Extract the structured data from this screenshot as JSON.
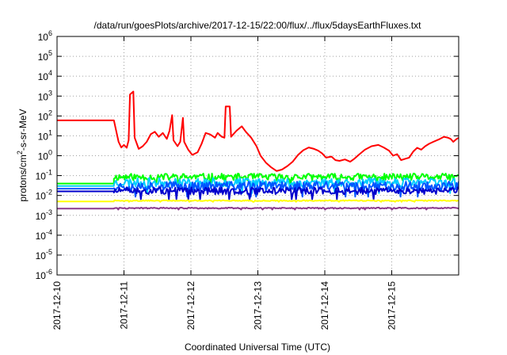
{
  "chart_data": {
    "type": "line",
    "title": "/data/run/goesPlots/archive/2017-12-15/22:00/flux/../flux/5daysEarthFluxes.txt",
    "xlabel": "Coordinated Universal Time (UTC)",
    "ylabel": "protons/cm²-s-sr-MeV",
    "yscale": "log",
    "xlim": [
      "2017-12-10",
      "2017-12-16"
    ],
    "ylim": [
      1e-06,
      1000000.0
    ],
    "grid": true,
    "x_ticks": [
      "2017-12-10",
      "2017-12-11",
      "2017-12-12",
      "2017-12-13",
      "2017-12-14",
      "2017-12-15"
    ],
    "y_ticks": [
      {
        "base": "10",
        "exp": "6"
      },
      {
        "base": "10",
        "exp": "5"
      },
      {
        "base": "10",
        "exp": "4"
      },
      {
        "base": "10",
        "exp": "3"
      },
      {
        "base": "10",
        "exp": "2"
      },
      {
        "base": "10",
        "exp": "1"
      },
      {
        "base": "10",
        "exp": "0"
      },
      {
        "base": "10",
        "exp": "-1"
      },
      {
        "base": "10",
        "exp": "-2"
      },
      {
        "base": "10",
        "exp": "-3"
      },
      {
        "base": "10",
        "exp": "-4"
      },
      {
        "base": "10",
        "exp": "-5"
      },
      {
        "base": "10",
        "exp": "-6"
      }
    ],
    "series": [
      {
        "color": "#ff0000",
        "width": 2,
        "points": [
          [
            0.0,
            60
          ],
          [
            0.85,
            60
          ],
          [
            0.88,
            20
          ],
          [
            0.92,
            5
          ],
          [
            0.96,
            2.6
          ],
          [
            1.0,
            3.5
          ],
          [
            1.04,
            2.5
          ],
          [
            1.07,
            6
          ],
          [
            1.09,
            1200
          ],
          [
            1.14,
            1700
          ],
          [
            1.16,
            8
          ],
          [
            1.22,
            2.2
          ],
          [
            1.28,
            3
          ],
          [
            1.34,
            5
          ],
          [
            1.4,
            12
          ],
          [
            1.46,
            16
          ],
          [
            1.52,
            9
          ],
          [
            1.58,
            14
          ],
          [
            1.64,
            7
          ],
          [
            1.68,
            18
          ],
          [
            1.72,
            110
          ],
          [
            1.74,
            6
          ],
          [
            1.8,
            3
          ],
          [
            1.84,
            5
          ],
          [
            1.88,
            80
          ],
          [
            1.9,
            5
          ],
          [
            1.96,
            2
          ],
          [
            2.02,
            1.1
          ],
          [
            2.1,
            1.5
          ],
          [
            2.16,
            4
          ],
          [
            2.22,
            14
          ],
          [
            2.28,
            12
          ],
          [
            2.32,
            10
          ],
          [
            2.36,
            8
          ],
          [
            2.4,
            14
          ],
          [
            2.46,
            9
          ],
          [
            2.5,
            8
          ],
          [
            2.52,
            300
          ],
          [
            2.58,
            300
          ],
          [
            2.6,
            9
          ],
          [
            2.68,
            18
          ],
          [
            2.76,
            30
          ],
          [
            2.82,
            16
          ],
          [
            2.9,
            8
          ],
          [
            2.98,
            3
          ],
          [
            3.04,
            1
          ],
          [
            3.12,
            0.45
          ],
          [
            3.2,
            0.26
          ],
          [
            3.28,
            0.17
          ],
          [
            3.36,
            0.2
          ],
          [
            3.44,
            0.3
          ],
          [
            3.52,
            0.5
          ],
          [
            3.6,
            1.1
          ],
          [
            3.68,
            1.9
          ],
          [
            3.76,
            2.6
          ],
          [
            3.84,
            2.2
          ],
          [
            3.9,
            1.8
          ],
          [
            3.96,
            1.3
          ],
          [
            4.02,
            0.8
          ],
          [
            4.1,
            0.9
          ],
          [
            4.16,
            0.6
          ],
          [
            4.22,
            0.55
          ],
          [
            4.3,
            0.65
          ],
          [
            4.38,
            0.5
          ],
          [
            4.44,
            0.7
          ],
          [
            4.52,
            1.2
          ],
          [
            4.6,
            2
          ],
          [
            4.7,
            3
          ],
          [
            4.8,
            3.5
          ],
          [
            4.88,
            2.6
          ],
          [
            4.96,
            1.8
          ],
          [
            5.02,
            1
          ],
          [
            5.08,
            1.2
          ],
          [
            5.14,
            0.6
          ],
          [
            5.2,
            0.7
          ],
          [
            5.26,
            0.8
          ],
          [
            5.32,
            1.6
          ],
          [
            5.38,
            2.5
          ],
          [
            5.44,
            2
          ],
          [
            5.5,
            3
          ],
          [
            5.56,
            4
          ],
          [
            5.62,
            5
          ],
          [
            5.7,
            6.5
          ],
          [
            5.78,
            9
          ],
          [
            5.84,
            8
          ],
          [
            5.88,
            7
          ],
          [
            5.92,
            5
          ],
          [
            5.97,
            7
          ],
          [
            6.0,
            8
          ]
        ]
      },
      {
        "color": "#00ff00",
        "width": 2,
        "flat": 0.04,
        "noisy_from": 0.85,
        "base": 0.085,
        "spread": 0.35,
        "seed": 11
      },
      {
        "color": "#00ccff",
        "width": 2,
        "flat": 0.03,
        "noisy_from": 0.85,
        "base": 0.045,
        "spread": 0.45,
        "seed": 23
      },
      {
        "color": "#0055ff",
        "width": 2,
        "flat": 0.022,
        "noisy_from": 0.85,
        "base": 0.03,
        "spread": 0.45,
        "seed": 37
      },
      {
        "color": "#0000cc",
        "width": 2,
        "flat": 0.016,
        "noisy_from": 0.85,
        "base": 0.017,
        "spread": 0.35,
        "seed": 51
      },
      {
        "color": "#ffff00",
        "width": 2,
        "flat": 0.005,
        "noisy_from": 0.85,
        "base": 0.0055,
        "spread": 0.05,
        "seed": 63
      },
      {
        "color": "#8b3a8b",
        "width": 2,
        "flat": 0.0022,
        "noisy_from": 0.85,
        "base": 0.0023,
        "spread": 0.06,
        "seed": 77
      }
    ]
  }
}
